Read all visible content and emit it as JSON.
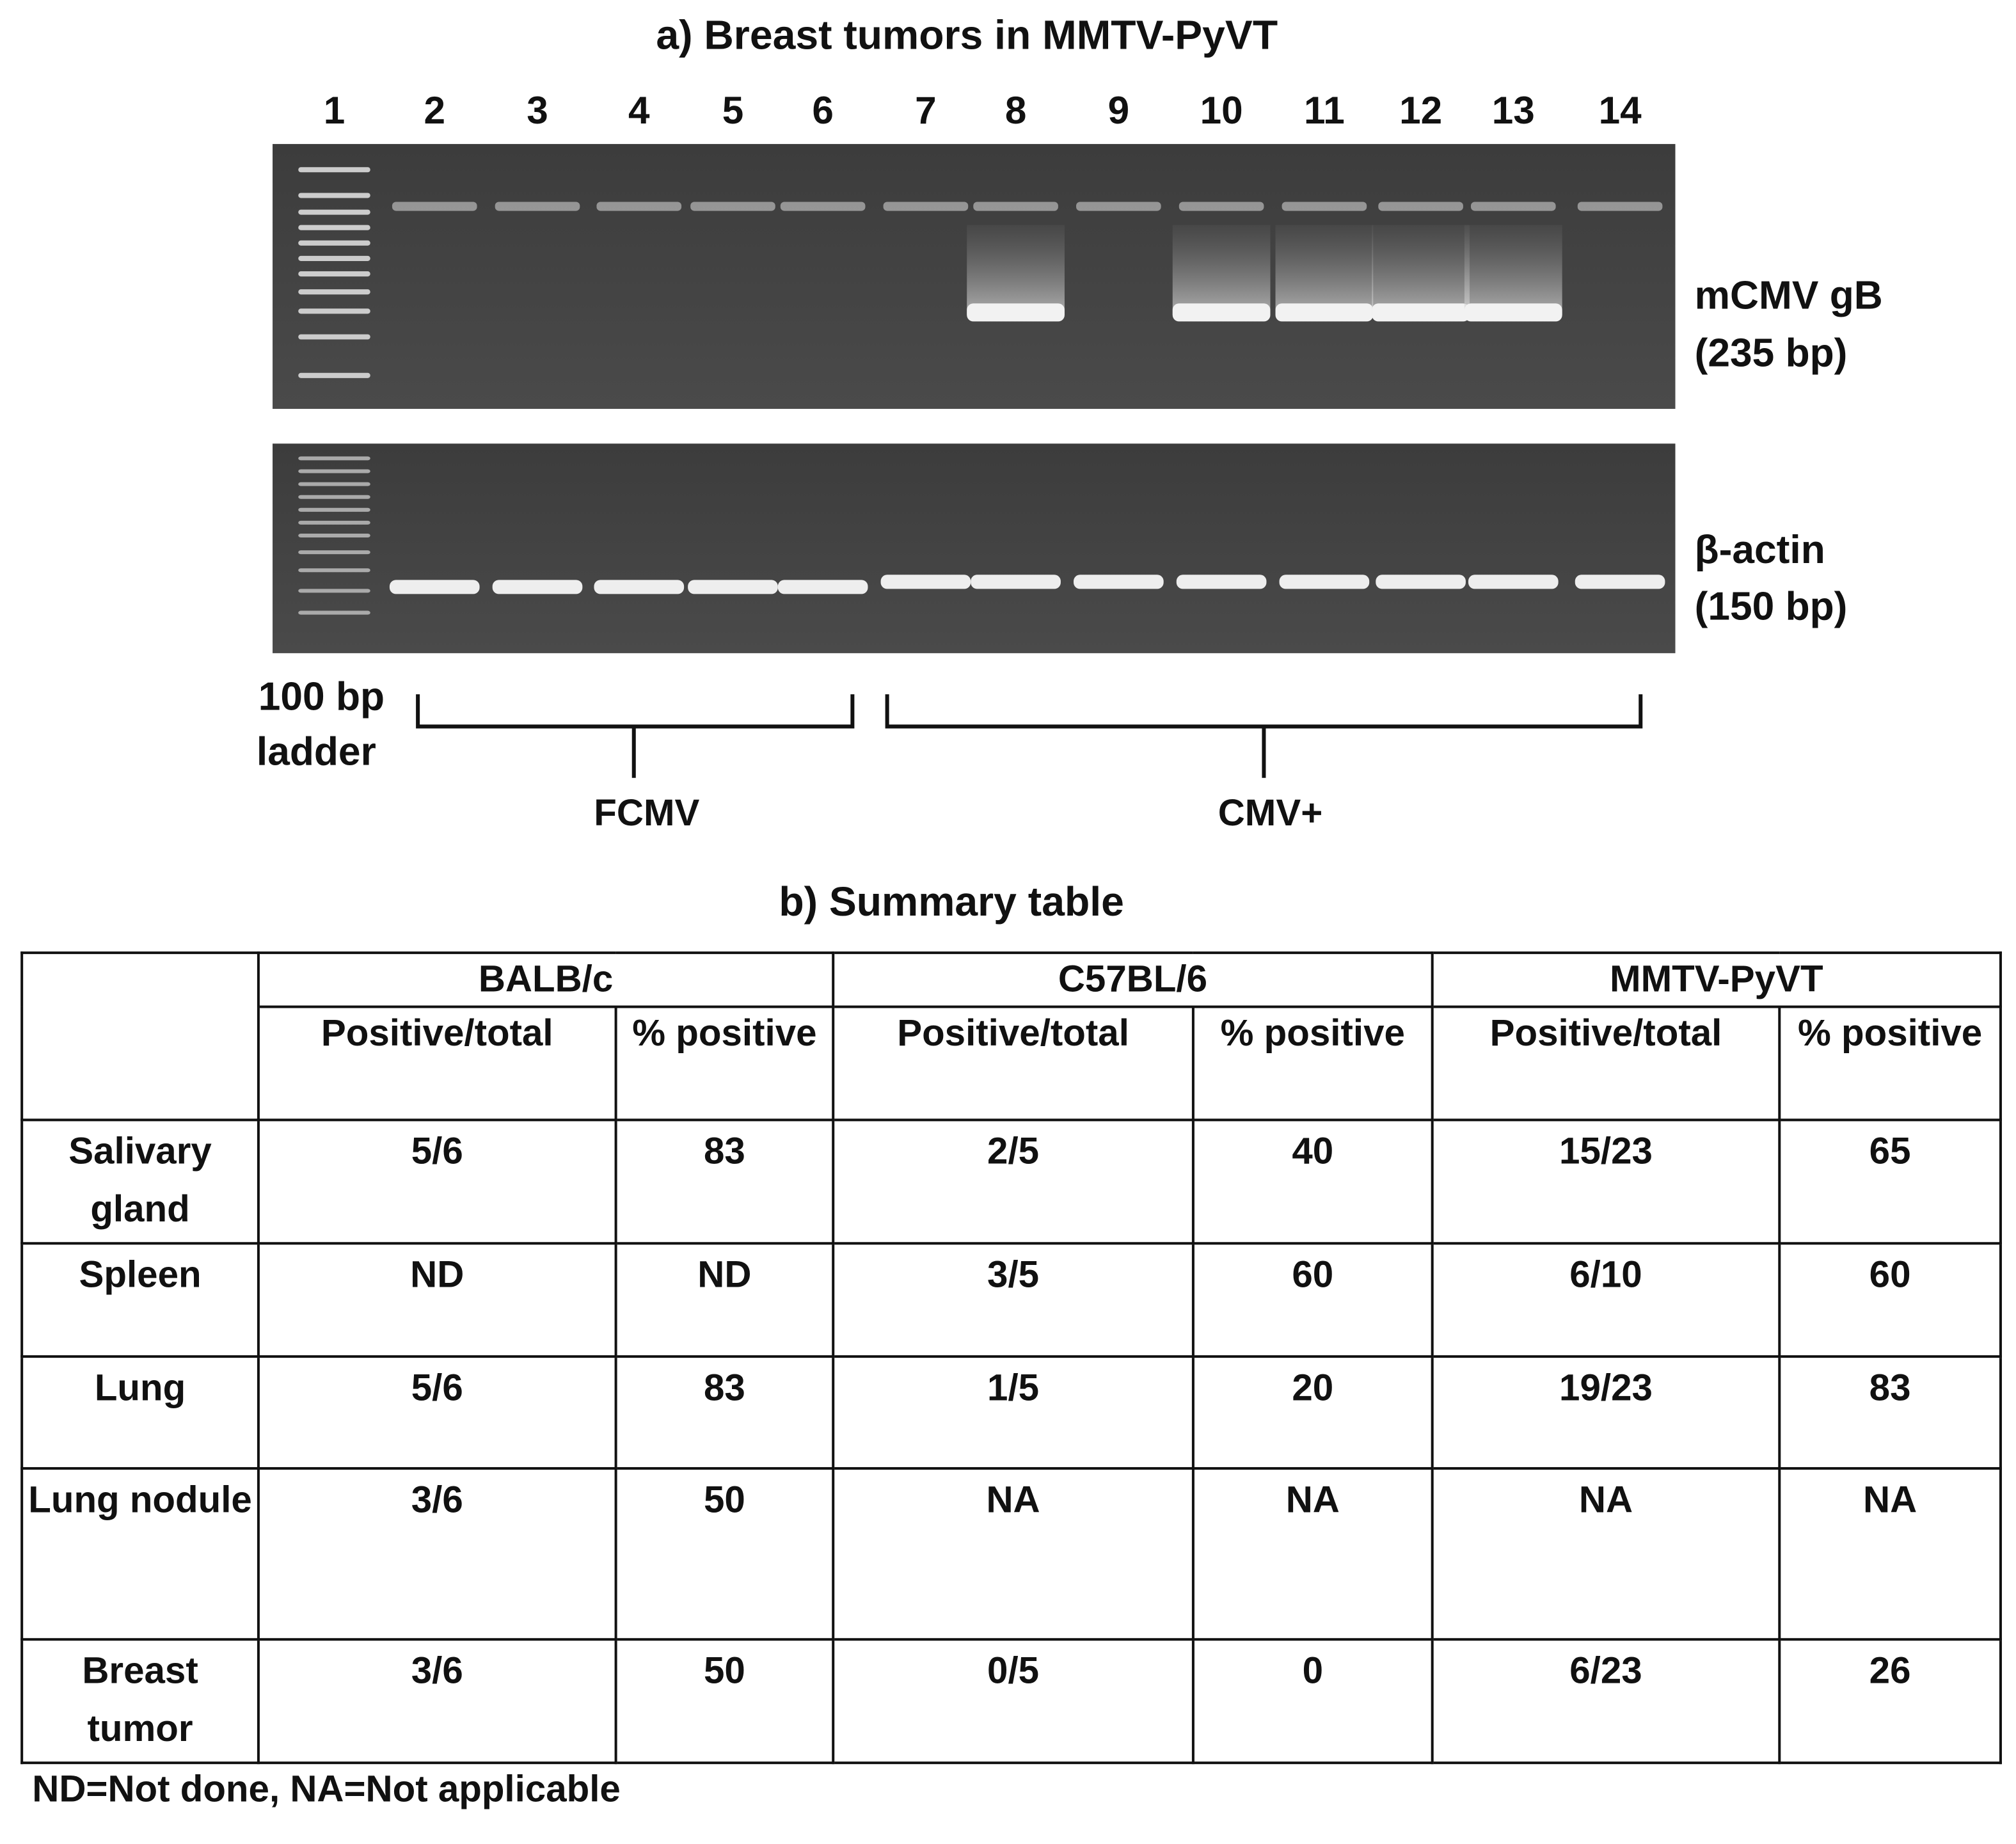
{
  "gel": {
    "title": "a) Breast tumors in MMTV-PyVT",
    "lanes": [
      "1",
      "2",
      "3",
      "4",
      "5",
      "6",
      "7",
      "8",
      "9",
      "10",
      "11",
      "12",
      "13",
      "14"
    ],
    "top_label": [
      "mCMV gB",
      "(235 bp)"
    ],
    "bottom_label": [
      "β-actin",
      "(150 bp)"
    ],
    "ladder_label": [
      "100 bp",
      "ladder"
    ],
    "groups": [
      "FCMV",
      "CMV+"
    ]
  },
  "table": {
    "title": "b) Summary table",
    "strains": [
      "BALB/c",
      "C57BL/6",
      "MMTV-PyVT"
    ],
    "subheaders": [
      "Positive/total",
      "% positive",
      "Positive/total",
      "% positive",
      "Positive/total",
      "% positive"
    ],
    "rows": [
      [
        "Salivary gland",
        "5/6",
        "83",
        "2/5",
        "40",
        "15/23",
        "65"
      ],
      [
        "Spleen",
        "ND",
        "ND",
        "3/5",
        "60",
        "6/10",
        "60"
      ],
      [
        "Lung",
        "5/6",
        "83",
        "1/5",
        "20",
        "19/23",
        "83"
      ],
      [
        "Lung nodule",
        "3/6",
        "50",
        "NA",
        "NA",
        "NA",
        "NA"
      ],
      [
        "Breast tumor",
        "3/6",
        "50",
        "0/5",
        "0",
        "6/23",
        "26"
      ]
    ]
  },
  "footnote": "ND=Not done, NA=Not applicable"
}
